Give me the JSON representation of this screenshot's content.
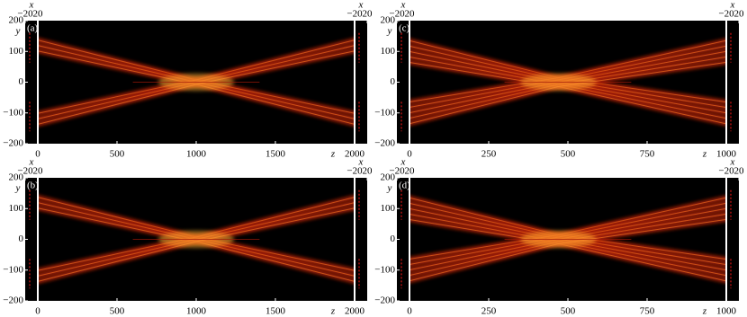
{
  "chart_data": [
    {
      "type": "heatmap",
      "label": "(a)",
      "xlabel": "z",
      "ylabel": "y",
      "xlim": [
        0,
        2000
      ],
      "xticks": [
        0,
        500,
        1000,
        1500,
        2000
      ],
      "ylim": [
        -200,
        200
      ],
      "yticks": [
        {
          "value": -200,
          "label": "−200"
        },
        {
          "value": -100,
          "label": "−100"
        },
        0,
        100,
        200
      ],
      "side_xlabel": "x",
      "side_xlim": [
        -20,
        20
      ],
      "side_xticks": [
        {
          "value": -20,
          "label": "−20"
        },
        20
      ]
    },
    {
      "type": "heatmap",
      "label": "(c)",
      "xlabel": "z",
      "ylabel": "y",
      "xlim": [
        0,
        1000
      ],
      "xticks": [
        0,
        250,
        500,
        750,
        1000
      ],
      "ylim": [
        -200,
        200
      ],
      "yticks": [
        {
          "value": -200,
          "label": "−200"
        },
        {
          "value": -100,
          "label": "−100"
        },
        0,
        100,
        200
      ],
      "side_xlabel": "x",
      "side_xlim": [
        -20,
        20
      ],
      "side_xticks": [
        {
          "value": -20,
          "label": "−20"
        },
        20
      ]
    },
    {
      "type": "heatmap",
      "label": "(b)",
      "xlabel": "z",
      "ylabel": "y",
      "xlim": [
        0,
        2000
      ],
      "xticks": [
        0,
        500,
        1000,
        1500,
        2000
      ],
      "ylim": [
        -200,
        200
      ],
      "yticks": [
        {
          "value": -200,
          "label": "−200"
        },
        {
          "value": -100,
          "label": "−100"
        },
        0,
        100,
        200
      ],
      "side_xlabel": "x",
      "side_xlim": [
        -20,
        20
      ],
      "side_xticks": [
        {
          "value": -20,
          "label": "−20"
        },
        20
      ]
    },
    {
      "type": "heatmap",
      "label": "(d)",
      "xlabel": "z",
      "ylabel": "y",
      "xlim": [
        0,
        1000
      ],
      "xticks": [
        0,
        250,
        500,
        750,
        1000
      ],
      "ylim": [
        -200,
        200
      ],
      "yticks": [
        {
          "value": -200,
          "label": "−200"
        },
        {
          "value": -100,
          "label": "−100"
        },
        0,
        100,
        200
      ],
      "side_xlabel": "x",
      "side_xlim": [
        -20,
        20
      ],
      "side_xticks": [
        {
          "value": -20,
          "label": "−20"
        },
        20
      ]
    }
  ]
}
